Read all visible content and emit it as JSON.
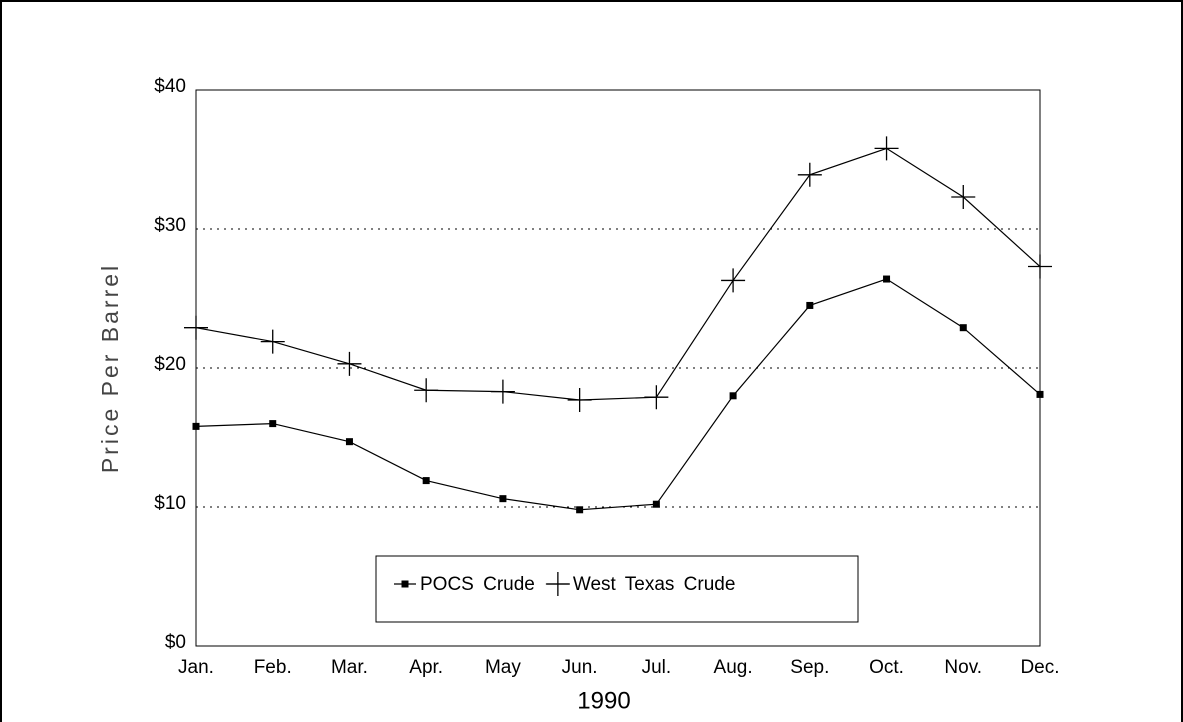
{
  "chart_data": {
    "type": "line",
    "x_label": "1990",
    "y_label": "Price Per Barrel",
    "categories": [
      "Jan.",
      "Feb.",
      "Mar.",
      "Apr.",
      "May",
      "Jun.",
      "Jul.",
      "Aug.",
      "Sep.",
      "Oct.",
      "Nov.",
      "Dec."
    ],
    "series": [
      {
        "name": "POCS Crude",
        "color": "#000000",
        "marker": "square",
        "values": [
          15.8,
          16.0,
          14.7,
          11.9,
          10.6,
          9.8,
          10.2,
          18.0,
          24.5,
          26.4,
          22.9,
          18.1
        ]
      },
      {
        "name": "West Texas Crude",
        "color": "#000000",
        "marker": "plus",
        "values": [
          22.9,
          21.9,
          20.3,
          18.4,
          18.3,
          17.7,
          17.9,
          26.3,
          33.9,
          35.8,
          32.3,
          27.3
        ]
      }
    ],
    "ylim": [
      0,
      40
    ],
    "yticks": [
      {
        "value": 0,
        "label": "$0"
      },
      {
        "value": 10,
        "label": "$10"
      },
      {
        "value": 20,
        "label": "$20"
      },
      {
        "value": 30,
        "label": "$30"
      },
      {
        "value": 40,
        "label": "$40"
      }
    ],
    "grid": true,
    "legend": "bottom"
  }
}
